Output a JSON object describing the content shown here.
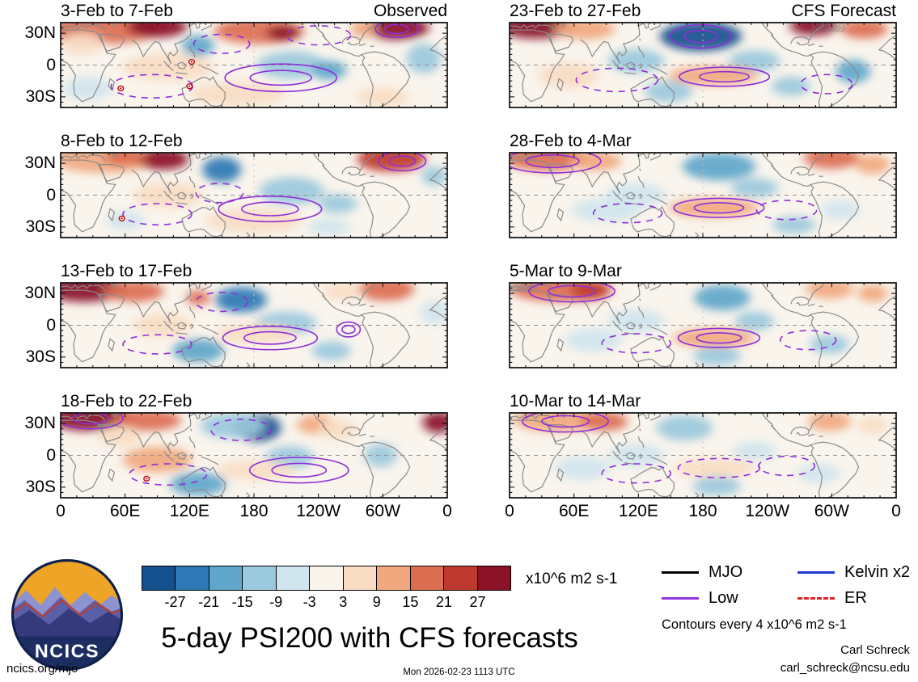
{
  "logo": {
    "text": "NCICS"
  },
  "footer": {
    "site": "ncics.org/mjo",
    "timestamp": "Mon 2026-02-23 1113 UTC",
    "author": "Carl Schreck",
    "email": "carl_schreck@ncsu.edu"
  },
  "chart_data": {
    "type": "heatmap",
    "title": "5-day PSI200 with CFS forecasts",
    "units": "x10^6 m2 s-1",
    "contour_note": "Contours every 4 x10^6 m2 s-1",
    "x_ticks": [
      "0",
      "60E",
      "120E",
      "180",
      "120W",
      "60W",
      "0"
    ],
    "y_ticks": [
      "30N",
      "0",
      "30S"
    ],
    "lon_range": [
      0,
      360
    ],
    "lat_range": [
      -40,
      40
    ],
    "colorbar": {
      "levels": [
        -27,
        -21,
        -15,
        -9,
        -3,
        3,
        9,
        15,
        21,
        27
      ],
      "tick_labels": [
        "-27",
        "-21",
        "-15",
        "-9",
        "-3",
        "3",
        "9",
        "15",
        "21",
        "27"
      ],
      "colors": [
        "#14508e",
        "#2e79b5",
        "#60a6cb",
        "#9bc9dd",
        "#d0e5ee",
        "#f9f4ec",
        "#f8dcc3",
        "#f1a87e",
        "#dc6e51",
        "#bf392e",
        "#8a1126"
      ]
    },
    "legend": [
      {
        "label": "MJO",
        "color": "#000000",
        "dash": false
      },
      {
        "label": "Low",
        "color": "#9135e0",
        "dash": false
      },
      {
        "label": "Kelvin x2",
        "color": "#2038d0",
        "dash": false
      },
      {
        "label": "ER",
        "color": "#e01f1f",
        "dash": true
      }
    ],
    "panels": [
      {
        "label": "3-Feb to 7-Feb",
        "corner": "Observed",
        "blobs": [
          [
            40,
            34,
            55,
            14,
            18
          ],
          [
            90,
            36,
            28,
            10,
            30
          ],
          [
            20,
            20,
            20,
            10,
            6
          ],
          [
            128,
            18,
            15,
            10,
            -18
          ],
          [
            185,
            32,
            42,
            12,
            18
          ],
          [
            207,
            30,
            15,
            7,
            30
          ],
          [
            313,
            35,
            30,
            11,
            30
          ],
          [
            282,
            34,
            12,
            8,
            12
          ],
          [
            215,
            0,
            32,
            13,
            -12
          ],
          [
            250,
            -5,
            16,
            9,
            -18
          ],
          [
            100,
            -2,
            42,
            13,
            6
          ],
          [
            338,
            6,
            16,
            14,
            -12
          ],
          [
            165,
            -27,
            45,
            11,
            6
          ],
          [
            25,
            -22,
            22,
            11,
            -6
          ],
          [
            300,
            -30,
            25,
            9,
            6
          ]
        ],
        "contours": [
          [
            205,
            -12,
            52,
            13,
            "solid"
          ],
          [
            85,
            -20,
            38,
            11,
            "dashed"
          ],
          [
            313,
            34,
            20,
            8,
            "solid"
          ],
          [
            150,
            20,
            26,
            9,
            "dashed"
          ],
          [
            240,
            28,
            30,
            9,
            "dashed"
          ]
        ],
        "storms": [
          [
            56,
            -22
          ],
          [
            122,
            3
          ],
          [
            120,
            -20
          ]
        ],
        "hatch": []
      },
      {
        "label": "23-Feb to 27-Feb",
        "corner": "CFS Forecast",
        "blobs": [
          [
            25,
            36,
            35,
            11,
            30
          ],
          [
            70,
            34,
            28,
            10,
            12
          ],
          [
            178,
            27,
            38,
            14,
            -30
          ],
          [
            283,
            37,
            22,
            9,
            30
          ],
          [
            330,
            34,
            22,
            9,
            18
          ],
          [
            118,
            4,
            26,
            11,
            -12
          ],
          [
            228,
            4,
            24,
            10,
            -12
          ],
          [
            190,
            -10,
            42,
            9,
            12
          ],
          [
            262,
            -20,
            18,
            9,
            -12
          ],
          [
            320,
            -6,
            16,
            11,
            -18
          ],
          [
            55,
            -10,
            28,
            12,
            6
          ],
          [
            148,
            -25,
            22,
            10,
            -12
          ]
        ],
        "contours": [
          [
            178,
            27,
            28,
            11,
            "solid"
          ],
          [
            100,
            -14,
            38,
            11,
            "dashed"
          ],
          [
            200,
            -11,
            42,
            9,
            "solid"
          ],
          [
            295,
            -18,
            24,
            9,
            "dashed"
          ]
        ],
        "storms": [],
        "hatch": [
          [
            297,
            36,
            16,
            5
          ]
        ]
      },
      {
        "label": "8-Feb to 12-Feb",
        "corner": "",
        "blobs": [
          [
            40,
            34,
            48,
            13,
            12
          ],
          [
            95,
            34,
            24,
            10,
            30
          ],
          [
            60,
            36,
            20,
            8,
            18
          ],
          [
            150,
            24,
            18,
            12,
            -24
          ],
          [
            308,
            34,
            32,
            12,
            24
          ],
          [
            215,
            4,
            30,
            13,
            -12
          ],
          [
            258,
            -8,
            18,
            9,
            -12
          ],
          [
            100,
            0,
            32,
            12,
            6
          ],
          [
            348,
            18,
            12,
            9,
            -12
          ],
          [
            180,
            -24,
            45,
            11,
            6
          ],
          [
            60,
            -24,
            18,
            9,
            -6
          ],
          [
            250,
            -30,
            20,
            8,
            -6
          ]
        ],
        "contours": [
          [
            195,
            -13,
            48,
            12,
            "solid"
          ],
          [
            90,
            -18,
            32,
            10,
            "dashed"
          ],
          [
            318,
            32,
            22,
            9,
            "solid"
          ],
          [
            148,
            2,
            22,
            9,
            "dashed"
          ]
        ],
        "storms": [
          [
            57,
            -22
          ]
        ],
        "hatch": []
      },
      {
        "label": "28-Feb to 4-Mar",
        "corner": "",
        "blobs": [
          [
            35,
            35,
            40,
            12,
            18
          ],
          [
            80,
            32,
            24,
            9,
            12
          ],
          [
            195,
            27,
            34,
            13,
            -18
          ],
          [
            300,
            35,
            26,
            10,
            18
          ],
          [
            338,
            29,
            16,
            9,
            12
          ],
          [
            118,
            0,
            28,
            11,
            -6
          ],
          [
            228,
            7,
            22,
            9,
            -12
          ],
          [
            190,
            -12,
            42,
            9,
            12
          ],
          [
            90,
            -14,
            32,
            11,
            -6
          ],
          [
            308,
            -14,
            18,
            9,
            -6
          ],
          [
            265,
            -28,
            20,
            8,
            -12
          ]
        ],
        "contours": [
          [
            40,
            32,
            45,
            11,
            "solid"
          ],
          [
            195,
            -12,
            42,
            9,
            "solid"
          ],
          [
            110,
            -17,
            32,
            9,
            "dashed"
          ],
          [
            258,
            -14,
            28,
            9,
            "dashed"
          ]
        ],
        "storms": [],
        "hatch": []
      },
      {
        "label": "13-Feb to 17-Feb",
        "corner": "",
        "blobs": [
          [
            22,
            34,
            38,
            12,
            30
          ],
          [
            68,
            32,
            28,
            10,
            18
          ],
          [
            128,
            26,
            11,
            7,
            18
          ],
          [
            168,
            24,
            24,
            12,
            -24
          ],
          [
            303,
            34,
            26,
            11,
            18
          ],
          [
            210,
            2,
            28,
            11,
            -12
          ],
          [
            128,
            -24,
            24,
            11,
            -18
          ],
          [
            252,
            -24,
            18,
            9,
            -12
          ],
          [
            95,
            0,
            28,
            11,
            6
          ],
          [
            348,
            12,
            13,
            11,
            -6
          ],
          [
            182,
            -8,
            38,
            9,
            6
          ],
          [
            262,
            32,
            18,
            8,
            6
          ]
        ],
        "contours": [
          [
            195,
            -12,
            44,
            11,
            "solid"
          ],
          [
            268,
            -4,
            11,
            7,
            "solid"
          ],
          [
            90,
            -18,
            32,
            9,
            "dashed"
          ],
          [
            150,
            22,
            24,
            9,
            "dashed"
          ]
        ],
        "storms": [],
        "hatch": []
      },
      {
        "label": "5-Mar to 9-Mar",
        "corner": "",
        "blobs": [
          [
            48,
            34,
            48,
            12,
            18
          ],
          [
            75,
            32,
            18,
            8,
            24
          ],
          [
            198,
            26,
            26,
            12,
            -18
          ],
          [
            298,
            34,
            22,
            9,
            12
          ],
          [
            338,
            30,
            14,
            8,
            12
          ],
          [
            118,
            4,
            26,
            11,
            -6
          ],
          [
            228,
            4,
            18,
            9,
            -12
          ],
          [
            190,
            -12,
            38,
            9,
            12
          ],
          [
            193,
            -29,
            22,
            9,
            -12
          ],
          [
            298,
            -18,
            18,
            9,
            -12
          ],
          [
            78,
            -14,
            26,
            11,
            -6
          ]
        ],
        "contours": [
          [
            58,
            32,
            40,
            10,
            "solid"
          ],
          [
            195,
            -12,
            38,
            9,
            "solid"
          ],
          [
            118,
            -17,
            32,
            9,
            "dashed"
          ],
          [
            278,
            -14,
            26,
            9,
            "dashed"
          ]
        ],
        "storms": [],
        "hatch": [
          [
            10,
            36,
            12,
            5
          ]
        ]
      },
      {
        "label": "18-Feb to 22-Feb",
        "corner": "",
        "blobs": [
          [
            28,
            35,
            40,
            12,
            30
          ],
          [
            80,
            33,
            32,
            10,
            18
          ],
          [
            183,
            26,
            22,
            13,
            -30
          ],
          [
            160,
            28,
            30,
            12,
            -12
          ],
          [
            238,
            29,
            18,
            9,
            12
          ],
          [
            352,
            31,
            15,
            10,
            30
          ],
          [
            128,
            -27,
            26,
            11,
            -18
          ],
          [
            213,
            -2,
            22,
            11,
            -12
          ],
          [
            90,
            -4,
            32,
            12,
            12
          ],
          [
            298,
            0,
            15,
            11,
            -12
          ],
          [
            182,
            -14,
            36,
            9,
            6
          ],
          [
            258,
            24,
            18,
            9,
            6
          ],
          [
            55,
            18,
            20,
            10,
            6
          ]
        ],
        "contours": [
          [
            28,
            35,
            30,
            10,
            "solid"
          ],
          [
            222,
            -14,
            46,
            12,
            "solid"
          ],
          [
            100,
            -18,
            36,
            10,
            "dashed"
          ],
          [
            168,
            24,
            28,
            10,
            "dashed"
          ]
        ],
        "storms": [
          [
            80,
            -22
          ]
        ],
        "hatch": []
      },
      {
        "label": "10-Mar to 14-Mar",
        "corner": "",
        "blobs": [
          [
            45,
            34,
            42,
            12,
            12
          ],
          [
            88,
            32,
            22,
            9,
            18
          ],
          [
            163,
            26,
            26,
            12,
            -12
          ],
          [
            298,
            32,
            20,
            9,
            12
          ],
          [
            118,
            0,
            26,
            11,
            -6
          ],
          [
            228,
            4,
            20,
            9,
            -6
          ],
          [
            190,
            -12,
            38,
            9,
            6
          ],
          [
            193,
            -29,
            22,
            9,
            -12
          ],
          [
            288,
            -17,
            20,
            9,
            -6
          ],
          [
            68,
            -12,
            26,
            11,
            -6
          ],
          [
            338,
            28,
            14,
            8,
            6
          ]
        ],
        "contours": [
          [
            52,
            32,
            40,
            10,
            "solid"
          ],
          [
            195,
            -12,
            38,
            9,
            "dashed"
          ],
          [
            118,
            -17,
            32,
            9,
            "dashed"
          ],
          [
            258,
            -10,
            26,
            9,
            "dashed"
          ]
        ],
        "storms": [],
        "hatch": []
      }
    ]
  }
}
